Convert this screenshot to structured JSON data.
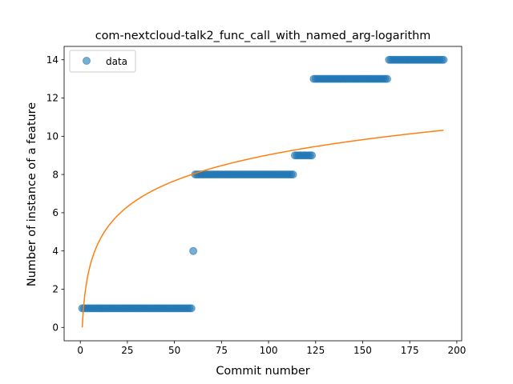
{
  "chart_data": {
    "type": "scatter",
    "title": "com-nextcloud-talk2_func_call_with_named_arg-logarithm",
    "xlabel": "Commit number",
    "ylabel": "Number of instance of a feature",
    "xlim": [
      -8.6,
      202.6
    ],
    "ylim": [
      -0.7,
      14.7
    ],
    "xticks": [
      0,
      25,
      50,
      75,
      100,
      125,
      150,
      175,
      200
    ],
    "yticks": [
      0,
      2,
      4,
      6,
      8,
      10,
      12,
      14
    ],
    "legend": {
      "position": "top-left",
      "entries": [
        "data"
      ]
    },
    "colors": {
      "data": "#1f77b4",
      "fit": "#ff7f0e"
    },
    "series": [
      {
        "name": "data",
        "kind": "scatter",
        "segments": [
          {
            "x_start": 1,
            "x_end": 59,
            "y": 1
          },
          {
            "x_start": 60,
            "x_end": 60,
            "y": 4
          },
          {
            "x_start": 61,
            "x_end": 113,
            "y": 8
          },
          {
            "x_start": 114,
            "x_end": 123,
            "y": 9
          },
          {
            "x_start": 124,
            "x_end": 163,
            "y": 13
          },
          {
            "x_start": 164,
            "x_end": 193,
            "y": 14
          }
        ]
      },
      {
        "kind": "line",
        "model": "y = a*ln(x) + b",
        "a": 1.96,
        "b": 0.0,
        "x_range": [
          1,
          193
        ]
      }
    ]
  }
}
